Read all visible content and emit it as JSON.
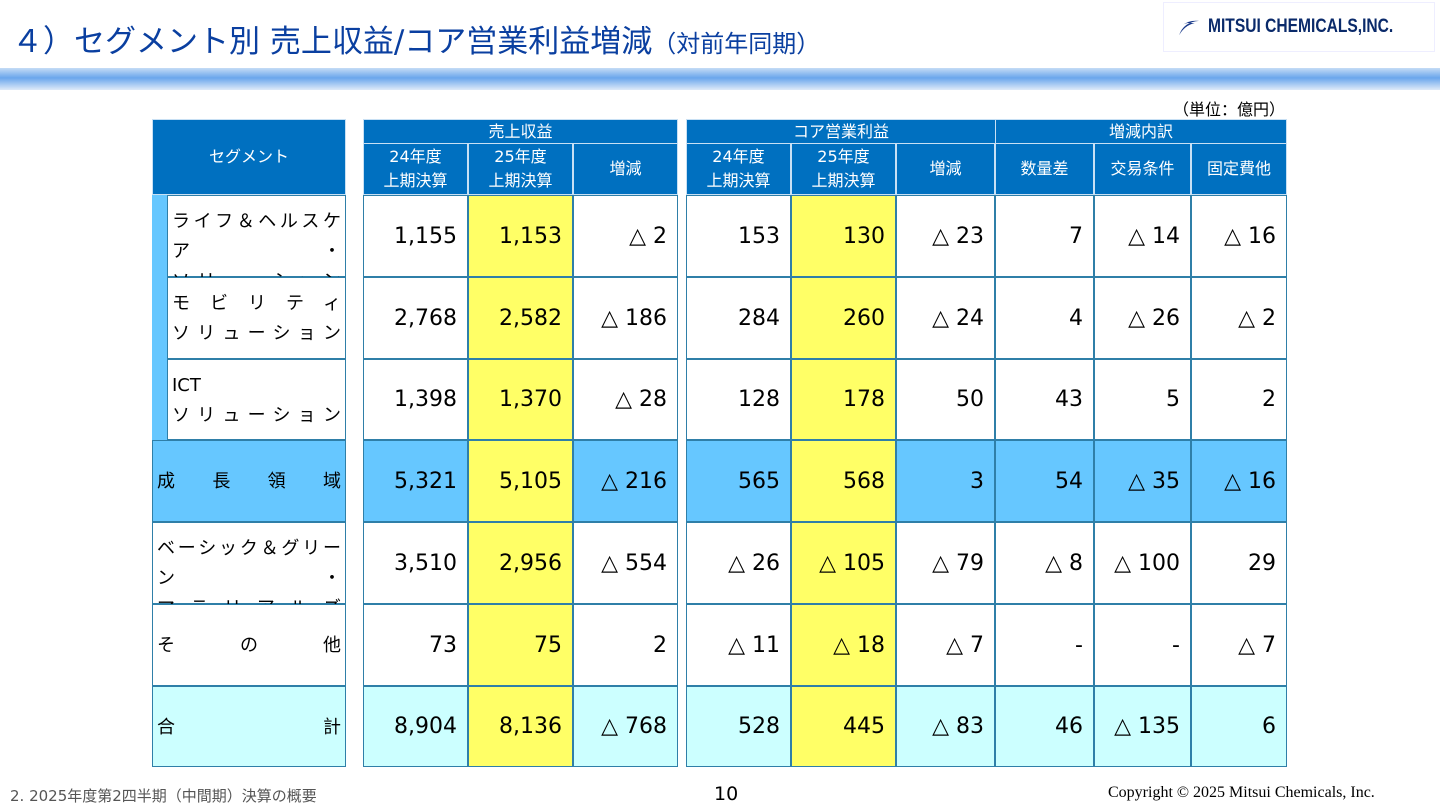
{
  "title": "４）セグメント別 売上収益/コア営業利益増減",
  "title_sub": "（対前年同期）",
  "logo_text": "MITSUI CHEMICALS,INC.",
  "unit": "（単位：億円）",
  "header": {
    "segment": "セグメント",
    "sales": "売上収益",
    "core": "コア営業利益",
    "breakdown": "増減内訳",
    "prev": "24年度\n上期決算",
    "curr": "25年度\n上期決算",
    "diff": "増減",
    "volume": "数量差",
    "terms": "交易条件",
    "fixed": "固定費他"
  },
  "rows": [
    {
      "label": [
        "ライフ＆ヘルスケア・",
        "ソリューション"
      ],
      "sub": true,
      "values": [
        "1,155",
        "1,153",
        "△ 2",
        "153",
        "130",
        "△ 23",
        "7",
        "△ 14",
        "△ 16"
      ]
    },
    {
      "label": [
        "モビリティ",
        "ソリューション"
      ],
      "sub": true,
      "values": [
        "2,768",
        "2,582",
        "△ 186",
        "284",
        "260",
        "△ 24",
        "4",
        "△ 26",
        "△ 2"
      ]
    },
    {
      "label": [
        "ICT",
        "ソリューション"
      ],
      "sub": true,
      "values": [
        "1,398",
        "1,370",
        "△ 28",
        "128",
        "178",
        "50",
        "43",
        "5",
        "2"
      ]
    },
    {
      "label": [
        "成長領域"
      ],
      "style": "growth",
      "values": [
        "5,321",
        "5,105",
        "△ 216",
        "565",
        "568",
        "3",
        "54",
        "△ 35",
        "△ 16"
      ]
    },
    {
      "label": [
        "ベーシック＆グリーン・",
        "マテリアルズ"
      ],
      "values": [
        "3,510",
        "2,956",
        "△ 554",
        "△ 26",
        "△ 105",
        "△ 79",
        "△ 8",
        "△ 100",
        "29"
      ]
    },
    {
      "label": [
        "その他"
      ],
      "values": [
        "73",
        "75",
        "2",
        "△ 11",
        "△ 18",
        "△ 7",
        "-",
        "-",
        "△ 7"
      ]
    },
    {
      "label": [
        "合計"
      ],
      "style": "total",
      "values": [
        "8,904",
        "8,136",
        "△ 768",
        "528",
        "445",
        "△ 83",
        "46",
        "△ 135",
        "6"
      ]
    }
  ],
  "colors": {
    "header": "#0070c0",
    "growth": "#66c7ff",
    "total": "#ccffff",
    "highlight": "#ffff66"
  },
  "footer": {
    "section": "2.  2025年度第2四半期（中間期）決算の概要",
    "page": "10",
    "copyright": "Copyright © 2025 Mitsui Chemicals, Inc."
  }
}
